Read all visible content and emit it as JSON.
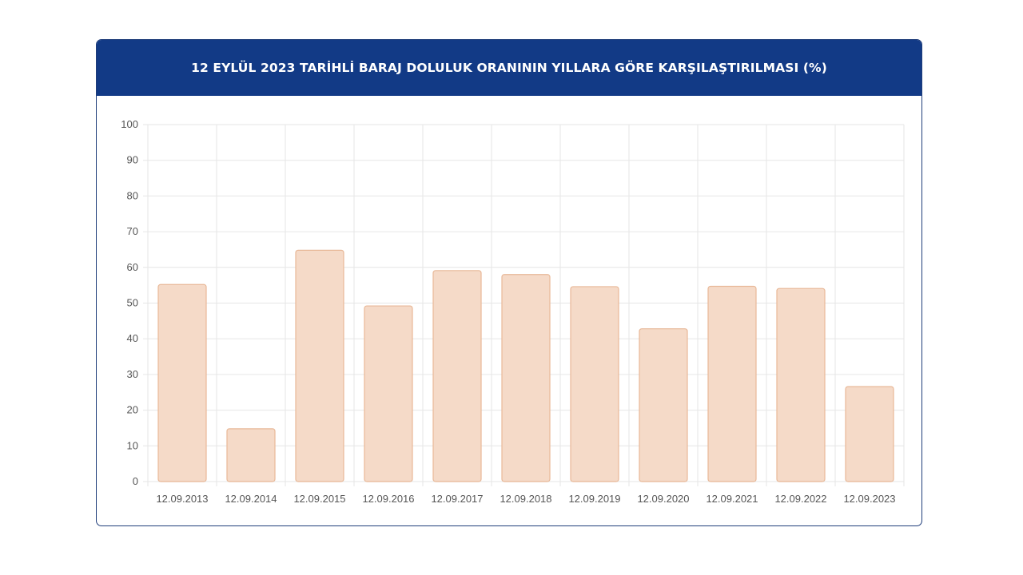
{
  "chart_data": {
    "type": "bar",
    "title": "12 EYLÜL 2023 TARİHLİ BARAJ DOLULUK ORANININ YILLARA GÖRE KARŞILAŞTIRILMASI (%)",
    "categories": [
      "12.09.2013",
      "12.09.2014",
      "12.09.2015",
      "12.09.2016",
      "12.09.2017",
      "12.09.2018",
      "12.09.2019",
      "12.09.2020",
      "12.09.2021",
      "12.09.2022",
      "12.09.2023"
    ],
    "values": [
      55.2,
      14.8,
      64.8,
      49.2,
      59.1,
      58.0,
      54.6,
      42.8,
      54.7,
      54.1,
      26.6
    ],
    "y_ticks": [
      "0",
      "10",
      "20",
      "30",
      "40",
      "50",
      "60",
      "70",
      "80",
      "90",
      "100"
    ],
    "ylim": [
      0,
      100
    ],
    "grid": true,
    "colors": {
      "bar_fill": "#f5dac8",
      "bar_stroke": "#e8b898",
      "header": "#123a86",
      "grid": "#e6e6e6"
    }
  }
}
